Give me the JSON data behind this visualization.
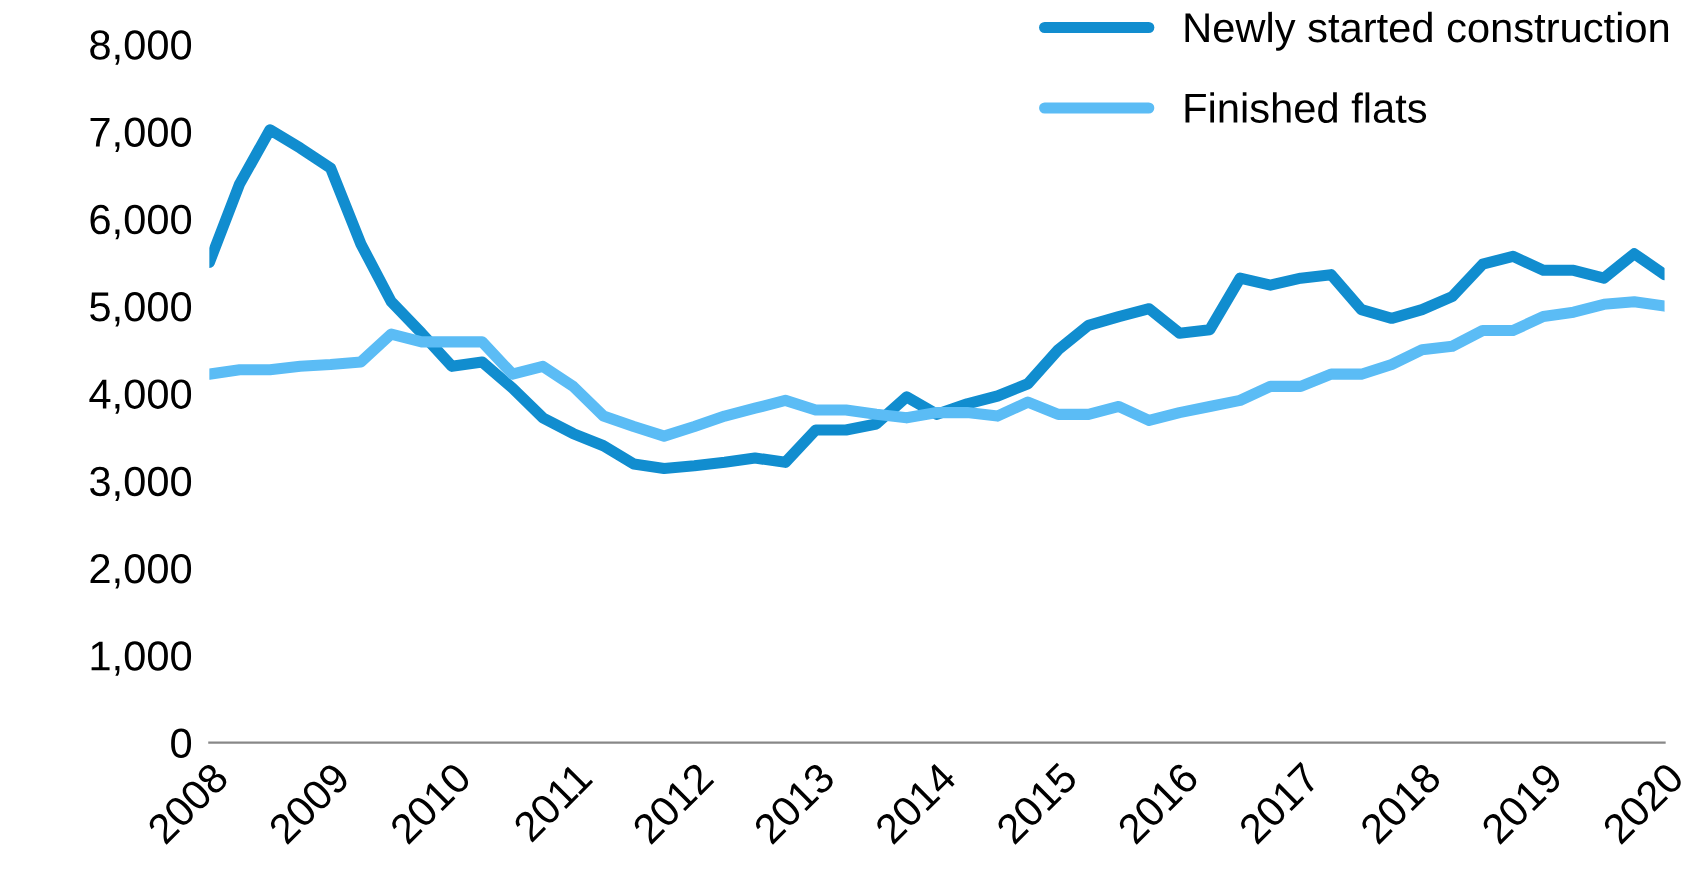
{
  "chart_data": {
    "type": "line",
    "xlim": [
      2008,
      2020
    ],
    "xticks": [
      2008,
      2009,
      2010,
      2011,
      2012,
      2013,
      2014,
      2015,
      2016,
      2017,
      2018,
      2019,
      2020
    ],
    "ylim": [
      0,
      8000
    ],
    "yticks": [
      {
        "value": 0,
        "label": "0"
      },
      {
        "value": 1000,
        "label": "1,000"
      },
      {
        "value": 2000,
        "label": "2,000"
      },
      {
        "value": 3000,
        "label": "3,000"
      },
      {
        "value": 4000,
        "label": "4,000"
      },
      {
        "value": 5000,
        "label": "5,000"
      },
      {
        "value": 6000,
        "label": "6,000"
      },
      {
        "value": 7000,
        "label": "7,000"
      },
      {
        "value": 8000,
        "label": "8,000"
      }
    ],
    "x": [
      2008,
      2008.25,
      2008.5,
      2008.75,
      2009,
      2009.25,
      2009.5,
      2009.75,
      2010,
      2010.25,
      2010.5,
      2010.75,
      2011,
      2011.25,
      2011.5,
      2011.75,
      2012,
      2012.25,
      2012.5,
      2012.75,
      2013,
      2013.25,
      2013.5,
      2013.75,
      2014,
      2014.25,
      2014.5,
      2014.75,
      2015,
      2015.25,
      2015.5,
      2015.75,
      2016,
      2016.25,
      2016.5,
      2016.75,
      2017,
      2017.25,
      2017.5,
      2017.75,
      2018,
      2018.25,
      2018.5,
      2018.75,
      2019,
      2019.25,
      2019.5,
      2019.75,
      2020
    ],
    "series": [
      {
        "name": "Newly started construction",
        "color": "#118dcf",
        "values": [
          5500,
          6400,
          7020,
          6810,
          6580,
          5710,
          5050,
          4690,
          4310,
          4360,
          4060,
          3720,
          3540,
          3400,
          3190,
          3140,
          3170,
          3210,
          3260,
          3210,
          3580,
          3580,
          3650,
          3960,
          3760,
          3880,
          3970,
          4110,
          4500,
          4780,
          4880,
          4970,
          4690,
          4730,
          5320,
          5240,
          5320,
          5360,
          4960,
          4860,
          4960,
          5110,
          5480,
          5570,
          5410,
          5410,
          5320,
          5600,
          5360
        ]
      },
      {
        "name": "Finished flats",
        "color": "#5bbcf5",
        "values": [
          4220,
          4270,
          4270,
          4310,
          4330,
          4360,
          4680,
          4590,
          4590,
          4590,
          4220,
          4310,
          4080,
          3740,
          3620,
          3510,
          3620,
          3740,
          3830,
          3920,
          3810,
          3810,
          3760,
          3720,
          3780,
          3780,
          3740,
          3900,
          3760,
          3760,
          3850,
          3690,
          3780,
          3850,
          3920,
          4080,
          4080,
          4220,
          4220,
          4330,
          4500,
          4540,
          4720,
          4720,
          4880,
          4930,
          5020,
          5050,
          5000
        ]
      }
    ],
    "legend": "top right",
    "grid": false,
    "marker": "none",
    "line_style": "solid"
  }
}
